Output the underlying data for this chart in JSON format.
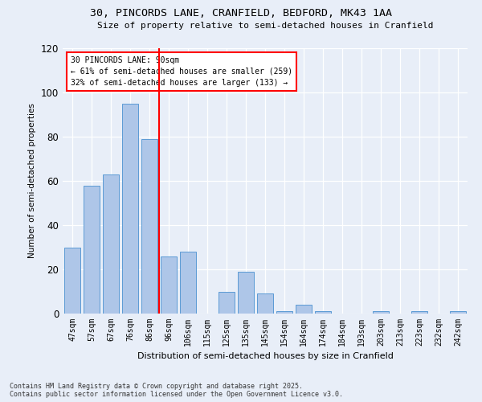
{
  "title_line1": "30, PINCORDS LANE, CRANFIELD, BEDFORD, MK43 1AA",
  "title_line2": "Size of property relative to semi-detached houses in Cranfield",
  "categories": [
    "47sqm",
    "57sqm",
    "67sqm",
    "76sqm",
    "86sqm",
    "96sqm",
    "106sqm",
    "115sqm",
    "125sqm",
    "135sqm",
    "145sqm",
    "154sqm",
    "164sqm",
    "174sqm",
    "184sqm",
    "193sqm",
    "203sqm",
    "213sqm",
    "223sqm",
    "232sqm",
    "242sqm"
  ],
  "values": [
    30,
    58,
    63,
    95,
    79,
    26,
    28,
    0,
    10,
    19,
    9,
    1,
    4,
    1,
    0,
    0,
    1,
    0,
    1,
    0,
    1
  ],
  "bar_color": "#aec6e8",
  "bar_edge_color": "#5b9bd5",
  "vline_color": "red",
  "vline_x_index": 4,
  "ylabel": "Number of semi-detached properties",
  "xlabel": "Distribution of semi-detached houses by size in Cranfield",
  "ylim": [
    0,
    120
  ],
  "yticks": [
    0,
    20,
    40,
    60,
    80,
    100,
    120
  ],
  "annotation_title": "30 PINCORDS LANE: 90sqm",
  "annotation_line1": "← 61% of semi-detached houses are smaller (259)",
  "annotation_line2": "32% of semi-detached houses are larger (133) →",
  "footer_line1": "Contains HM Land Registry data © Crown copyright and database right 2025.",
  "footer_line2": "Contains public sector information licensed under the Open Government Licence v3.0.",
  "bg_color": "#e8eef8",
  "plot_bg_color": "#e8eef8"
}
